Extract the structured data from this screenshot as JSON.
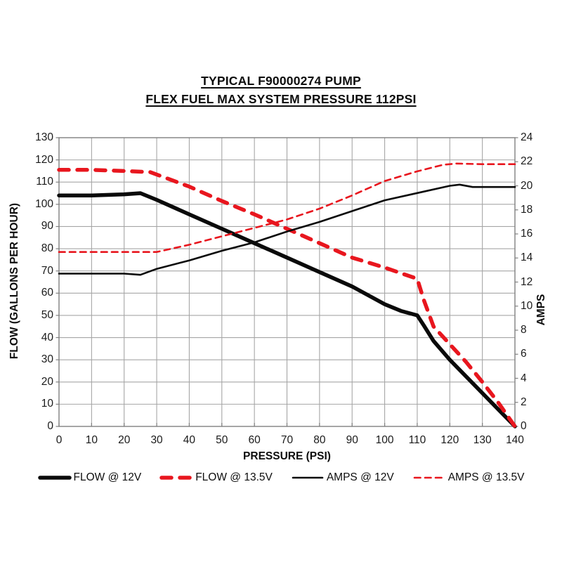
{
  "title": {
    "line1": "TYPICAL F90000274 PUMP",
    "line2": "FLEX FUEL MAX SYSTEM PRESSURE 112PSI"
  },
  "chart_data": {
    "type": "line",
    "title": "TYPICAL F90000274 PUMP — FLEX FUEL MAX SYSTEM PRESSURE 112PSI",
    "grid": true,
    "legend_position": "bottom",
    "x_axis": {
      "label": "PRESSURE (PSI)",
      "min": 0,
      "max": 140,
      "tick_step": 10
    },
    "y_left": {
      "label": "FLOW (GALLONS PER HOUR)",
      "min": 0,
      "max": 130,
      "tick_step": 10
    },
    "y_right": {
      "label": "AMPS",
      "min": 0,
      "max": 24,
      "tick_step": 2
    },
    "colors": {
      "black": "#0a0a0a",
      "red": "#e8161e",
      "grid": "#a6a6a6",
      "frame": "#7f7f7f",
      "text": "#1a1a1a"
    },
    "series": [
      {
        "name": "FLOW @ 12V",
        "axis": "left",
        "color": "black",
        "style": "solid",
        "width": 5.5,
        "dash": null,
        "points": [
          [
            0,
            104
          ],
          [
            10,
            104
          ],
          [
            20,
            104.5
          ],
          [
            25,
            105
          ],
          [
            30,
            102
          ],
          [
            40,
            95.5
          ],
          [
            50,
            89
          ],
          [
            60,
            82.5
          ],
          [
            70,
            76
          ],
          [
            80,
            69.5
          ],
          [
            90,
            63
          ],
          [
            100,
            55
          ],
          [
            105,
            52
          ],
          [
            110,
            50
          ],
          [
            112,
            45.5
          ],
          [
            115,
            38.5
          ],
          [
            120,
            30
          ],
          [
            125,
            22.5
          ],
          [
            130,
            15
          ],
          [
            135,
            7.5
          ],
          [
            140,
            0
          ]
        ]
      },
      {
        "name": "FLOW @ 13.5V",
        "axis": "left",
        "color": "red",
        "style": "dashed",
        "width": 5.5,
        "dash": [
          14,
          12
        ],
        "points": [
          [
            0,
            115.5
          ],
          [
            10,
            115.5
          ],
          [
            20,
            115
          ],
          [
            28,
            114.5
          ],
          [
            40,
            108
          ],
          [
            50,
            101.5
          ],
          [
            60,
            95.5
          ],
          [
            70,
            89
          ],
          [
            80,
            82.5
          ],
          [
            90,
            76
          ],
          [
            100,
            71.5
          ],
          [
            105,
            69
          ],
          [
            110,
            66.5
          ],
          [
            112,
            57
          ],
          [
            115,
            45
          ],
          [
            120,
            37
          ],
          [
            125,
            29
          ],
          [
            130,
            20
          ],
          [
            135,
            10.5
          ],
          [
            140,
            0
          ]
        ]
      },
      {
        "name": "AMPS @ 12V",
        "axis": "right",
        "color": "black",
        "style": "solid",
        "width": 2.6,
        "dash": null,
        "points": [
          [
            0,
            12.7
          ],
          [
            10,
            12.7
          ],
          [
            20,
            12.7
          ],
          [
            25,
            12.6
          ],
          [
            30,
            13.1
          ],
          [
            40,
            13.8
          ],
          [
            50,
            14.6
          ],
          [
            60,
            15.3
          ],
          [
            70,
            16.2
          ],
          [
            80,
            17
          ],
          [
            90,
            17.9
          ],
          [
            100,
            18.8
          ],
          [
            110,
            19.4
          ],
          [
            120,
            20
          ],
          [
            123,
            20.1
          ],
          [
            127,
            19.9
          ],
          [
            140,
            19.9
          ]
        ]
      },
      {
        "name": "AMPS @ 13.5V",
        "axis": "right",
        "color": "red",
        "style": "dashed",
        "width": 2.6,
        "dash": [
          8.5,
          6.5
        ],
        "points": [
          [
            0,
            14.5
          ],
          [
            10,
            14.5
          ],
          [
            20,
            14.5
          ],
          [
            30,
            14.5
          ],
          [
            40,
            15.1
          ],
          [
            50,
            15.8
          ],
          [
            60,
            16.5
          ],
          [
            70,
            17.2
          ],
          [
            80,
            18.1
          ],
          [
            90,
            19.2
          ],
          [
            100,
            20.4
          ],
          [
            110,
            21.2
          ],
          [
            118,
            21.75
          ],
          [
            122,
            21.85
          ],
          [
            130,
            21.8
          ],
          [
            140,
            21.8
          ]
        ]
      }
    ]
  }
}
